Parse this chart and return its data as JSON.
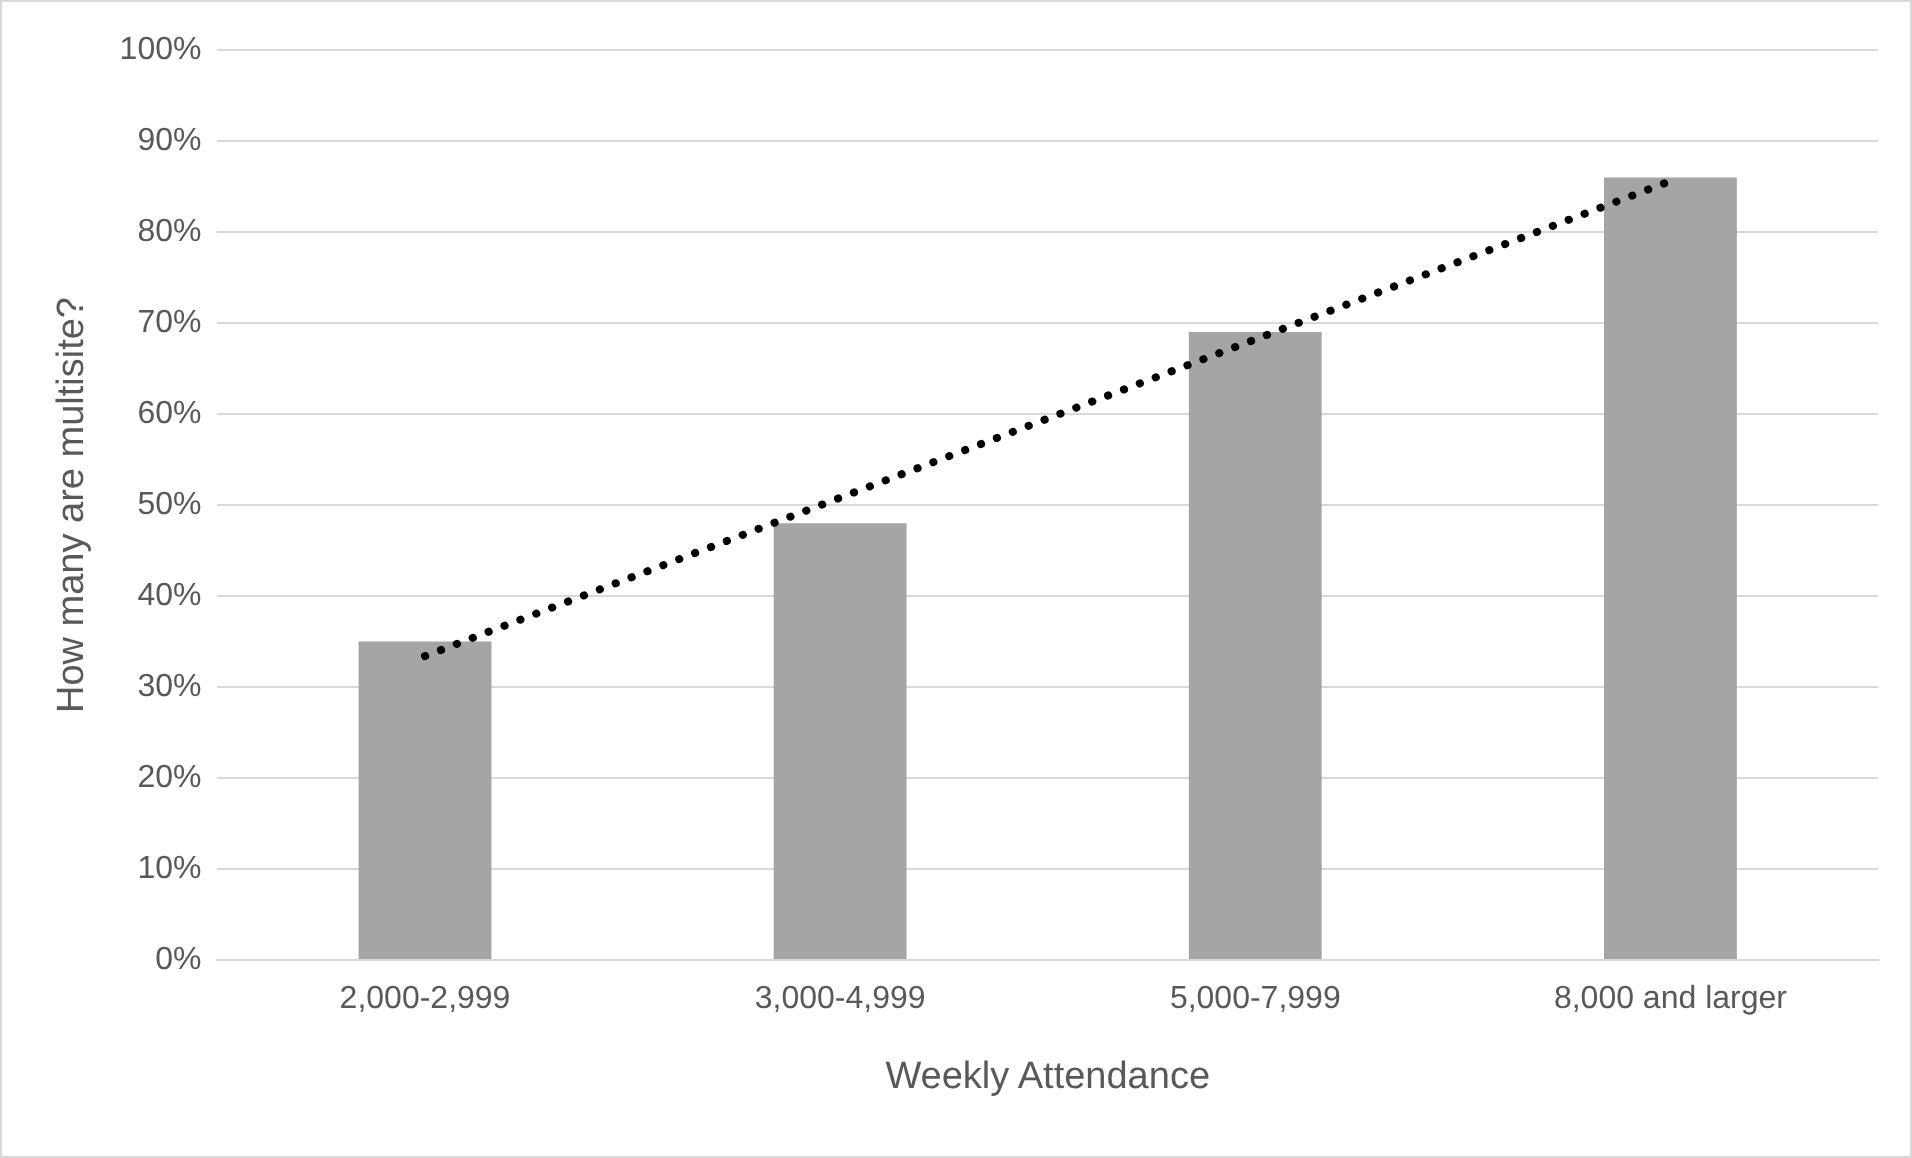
{
  "chart_data": {
    "type": "bar",
    "xlabel": "Weekly Attendance",
    "ylabel": "How many are multisite?",
    "categories": [
      "2,000-2,999",
      "3,000-4,999",
      "5,000-7,999",
      "8,000 and larger"
    ],
    "series": [
      {
        "color": "#a5a5a5",
        "values": [
          35,
          48,
          69,
          86
        ]
      },
      {
        "type": "line",
        "color": "#000000",
        "line_style": "dotted",
        "marker": "none",
        "values": [
          33.4,
          50.8,
          68.2,
          85.6
        ]
      }
    ],
    "ylim": [
      0,
      100
    ],
    "yticks": [
      {
        "value": 0,
        "label": "0%"
      },
      {
        "value": 10,
        "label": "10%"
      },
      {
        "value": 20,
        "label": "20%"
      },
      {
        "value": 30,
        "label": "30%"
      },
      {
        "value": 40,
        "label": "40%"
      },
      {
        "value": 50,
        "label": "50%"
      },
      {
        "value": 60,
        "label": "60%"
      },
      {
        "value": 70,
        "label": "70%"
      },
      {
        "value": 80,
        "label": "80%"
      },
      {
        "value": 90,
        "label": "90%"
      },
      {
        "value": 100,
        "label": "100%"
      }
    ],
    "grid": "y",
    "legend": false
  }
}
